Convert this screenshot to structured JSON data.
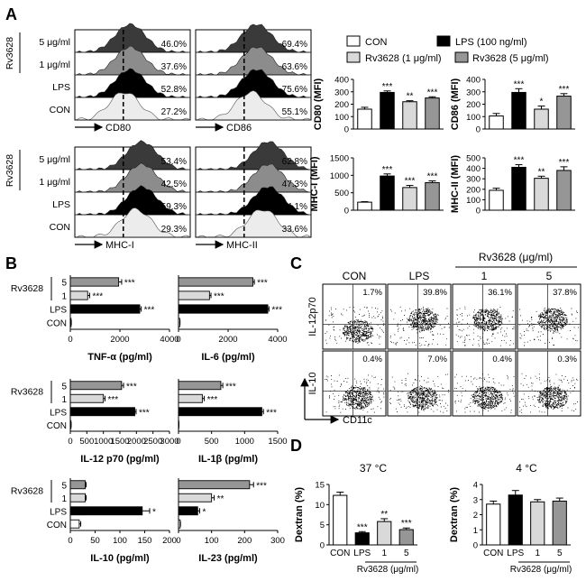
{
  "panel_labels": {
    "a": "A",
    "b": "B",
    "c": "C",
    "d": "D"
  },
  "legend": {
    "con": "CON",
    "lps": "LPS (100 ng/ml)",
    "rv1": "Rv3628 (1 μg/ml)",
    "rv5": "Rv3628 (5 μg/ml)",
    "colors": {
      "con": "#ffffff",
      "lps": "#000000",
      "rv1": "#d9d9d9",
      "rv5": "#969696"
    }
  },
  "histograms": {
    "group_label": "Rv3628",
    "row_labels": [
      "5 μg/ml",
      "1 μg/ml",
      "LPS",
      "CON"
    ],
    "row_labels_short": [
      "5",
      "1",
      "LPS",
      "CON"
    ],
    "row_colors": [
      "#3a3a3a",
      "#8c8c8c",
      "#000000",
      "#ececec"
    ],
    "panels": [
      {
        "axis": "CD80",
        "pcts": [
          "46.0%",
          "37.6%",
          "52.8%",
          "27.2%"
        ]
      },
      {
        "axis": "CD86",
        "pcts": [
          "69.4%",
          "63.6%",
          "75.6%",
          "55.1%"
        ]
      },
      {
        "axis": "MHC-I",
        "pcts": [
          "53.4%",
          "42.5%",
          "59.3%",
          "29.3%"
        ]
      },
      {
        "axis": "MHC-II",
        "pcts": [
          "62.8%",
          "47.3%",
          "64.1%",
          "33.6%"
        ]
      }
    ]
  },
  "chart_data": [
    {
      "type": "bar",
      "id": "cd80",
      "ylabel": "CD80 (MFI)",
      "categories": [
        "CON",
        "LPS",
        "Rv3628 1",
        "Rv3628 5"
      ],
      "values": [
        160,
        295,
        220,
        250
      ],
      "errors": [
        15,
        12,
        8,
        10
      ],
      "sig": [
        "",
        "***",
        "**",
        "***"
      ],
      "ylim": [
        0,
        400
      ],
      "yticks": [
        "0",
        "100",
        "200",
        "300",
        "400"
      ]
    },
    {
      "type": "bar",
      "id": "cd86",
      "ylabel": "CD86 (MFI)",
      "categories": [
        "CON",
        "LPS",
        "Rv3628 1",
        "Rv3628 5"
      ],
      "values": [
        105,
        295,
        160,
        265
      ],
      "errors": [
        20,
        30,
        25,
        20
      ],
      "sig": [
        "",
        "***",
        "*",
        "***"
      ],
      "ylim": [
        0,
        400
      ],
      "yticks": [
        "0",
        "100",
        "200",
        "300",
        "400"
      ]
    },
    {
      "type": "bar",
      "id": "mhc1",
      "ylabel": "MHC-I (MFI)",
      "categories": [
        "CON",
        "LPS",
        "Rv3628 1",
        "Rv3628 5"
      ],
      "values": [
        230,
        980,
        650,
        790
      ],
      "errors": [
        15,
        60,
        60,
        50
      ],
      "sig": [
        "",
        "***",
        "***",
        "***"
      ],
      "ylim": [
        0,
        1500
      ],
      "yticks": [
        "0",
        "500",
        "1000",
        "1500"
      ]
    },
    {
      "type": "bar",
      "id": "mhc2",
      "ylabel": "MHC-II (MFI)",
      "categories": [
        "CON",
        "LPS",
        "Rv3628 1",
        "Rv3628 5"
      ],
      "values": [
        190,
        410,
        305,
        380
      ],
      "errors": [
        20,
        25,
        20,
        35
      ],
      "sig": [
        "",
        "***",
        "**",
        "***"
      ],
      "ylim": [
        0,
        500
      ],
      "yticks": [
        "0",
        "100",
        "200",
        "300",
        "400",
        "500"
      ]
    },
    {
      "type": "hbar",
      "id": "tnf",
      "xlabel": "TNF-α (pg/ml)",
      "categories": [
        "5",
        "1",
        "LPS",
        "CON"
      ],
      "values": [
        1950,
        700,
        2800,
        30
      ],
      "errors": [
        120,
        80,
        60,
        10
      ],
      "sig": [
        "***",
        "***",
        "***",
        ""
      ],
      "xlim": [
        0,
        4000
      ],
      "xticks": [
        "0",
        "2000",
        "4000"
      ]
    },
    {
      "type": "hbar",
      "id": "il6",
      "xlabel": "IL-6 (pg/ml)",
      "categories": [
        "5",
        "1",
        "LPS",
        "CON"
      ],
      "values": [
        3000,
        1250,
        3600,
        50
      ],
      "errors": [
        60,
        60,
        50,
        10
      ],
      "sig": [
        "***",
        "***",
        "***",
        ""
      ],
      "xlim": [
        0,
        4000
      ],
      "xticks": [
        "0",
        "2000",
        "4000"
      ]
    },
    {
      "type": "hbar",
      "id": "il12",
      "xlabel": "IL-12 p70 (pg/ml)",
      "categories": [
        "5",
        "1",
        "LPS",
        "CON"
      ],
      "values": [
        1550,
        1000,
        1950,
        20
      ],
      "errors": [
        60,
        50,
        40,
        5
      ],
      "sig": [
        "***",
        "***",
        "***",
        ""
      ],
      "xlim": [
        0,
        3000
      ],
      "xticks": [
        "0",
        "500",
        "1000",
        "1500",
        "2000",
        "2500",
        "3000"
      ]
    },
    {
      "type": "hbar",
      "id": "il1b",
      "xlabel": "IL-1β (pg/ml)",
      "categories": [
        "5",
        "1",
        "LPS",
        "CON"
      ],
      "values": [
        640,
        360,
        1260,
        5
      ],
      "errors": [
        30,
        30,
        25,
        2
      ],
      "sig": [
        "***",
        "***",
        "***",
        ""
      ],
      "xlim": [
        0,
        1500
      ],
      "xticks": [
        "0",
        "500",
        "1000",
        "1500"
      ]
    },
    {
      "type": "hbar",
      "id": "il10",
      "xlabel": "IL-10 (pg/ml)",
      "categories": [
        "5",
        "1",
        "LPS",
        "CON"
      ],
      "values": [
        30,
        30,
        145,
        18
      ],
      "errors": [
        2,
        2,
        15,
        3
      ],
      "sig": [
        "",
        "",
        "*",
        ""
      ],
      "xlim": [
        0,
        200
      ],
      "xticks": [
        "0",
        "50",
        "100",
        "150",
        "200"
      ]
    },
    {
      "type": "hbar",
      "id": "il23",
      "xlabel": "IL-23 (pg/ml)",
      "categories": [
        "5",
        "1",
        "LPS",
        "CON"
      ],
      "values": [
        215,
        100,
        58,
        5
      ],
      "errors": [
        12,
        8,
        6,
        1
      ],
      "sig": [
        "***",
        "**",
        "*",
        ""
      ],
      "xlim": [
        0,
        300
      ],
      "xticks": [
        "0",
        "100",
        "200",
        "300"
      ]
    },
    {
      "type": "bar",
      "id": "dex37",
      "title": "37 °C",
      "ylabel": "Dextran (%)",
      "categories": [
        "CON",
        "LPS",
        "1",
        "5"
      ],
      "values": [
        12.3,
        3.0,
        5.8,
        3.8
      ],
      "errors": [
        0.8,
        0.3,
        0.7,
        0.4
      ],
      "sig": [
        "",
        "***",
        "**",
        "***"
      ],
      "ylim": [
        0,
        15
      ],
      "yticks": [
        "0",
        "5",
        "10",
        "15"
      ]
    },
    {
      "type": "bar",
      "id": "dex4",
      "title": "4 °C",
      "ylabel": "Dextran (%)",
      "categories": [
        "CON",
        "LPS",
        "1",
        "5"
      ],
      "values": [
        2.7,
        3.3,
        2.85,
        2.9
      ],
      "errors": [
        0.2,
        0.3,
        0.15,
        0.2
      ],
      "sig": [
        "",
        "",
        "",
        ""
      ],
      "ylim": [
        0,
        4
      ],
      "yticks": [
        "0",
        "1",
        "2",
        "3",
        "4"
      ]
    }
  ],
  "bar_colors": [
    "#ffffff",
    "#000000",
    "#d9d9d9",
    "#969696"
  ],
  "b_group": {
    "label": "Rv3628"
  },
  "flow": {
    "headers": [
      "CON",
      "LPS",
      "1",
      "5"
    ],
    "group_title": "Rv3628 (μg/ml)",
    "rows": [
      {
        "label": "IL-12p70",
        "pcts": [
          "1.7%",
          "39.8%",
          "36.1%",
          "37.8%"
        ]
      },
      {
        "label": "IL-10",
        "pcts": [
          "0.4%",
          "7.0%",
          "0.4%",
          "0.3%"
        ]
      }
    ],
    "xaxis": "CD11c"
  },
  "d_footer": {
    "group": "Rv3628 (μg/ml)",
    "group2": "Rv3628 (μg/ml)"
  }
}
